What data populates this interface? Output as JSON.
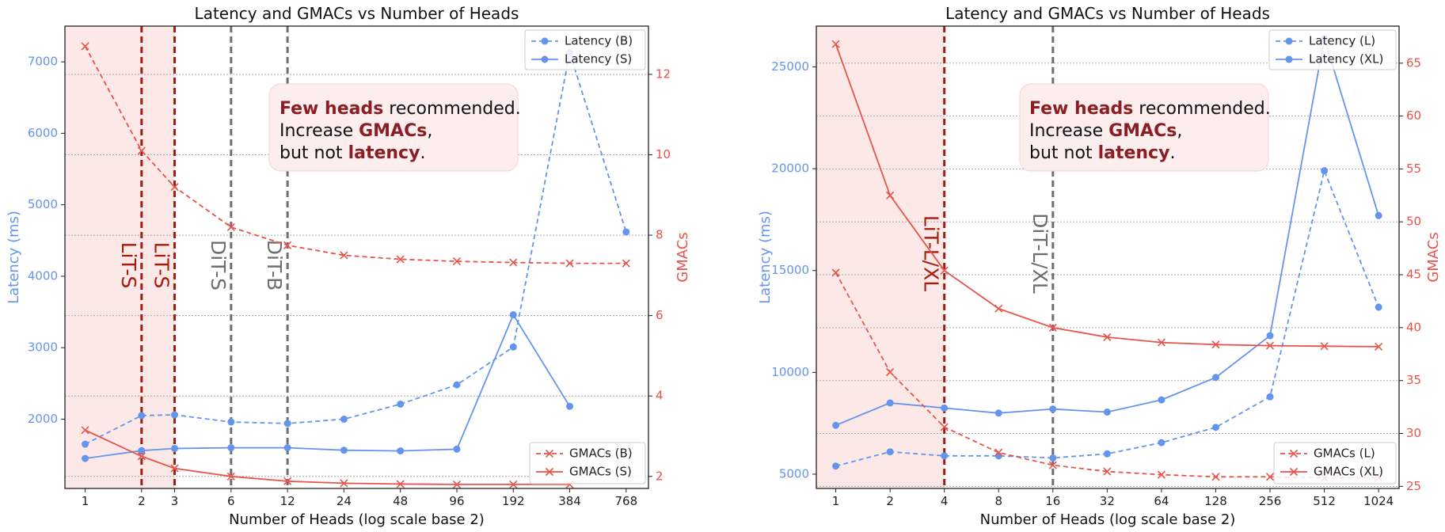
{
  "colors": {
    "latency": "#6495ED",
    "gmacs": "#E8534A",
    "lit_line": "#A61B0F",
    "dit_line": "#6E6E6E",
    "shade": "#FCE9E7",
    "grid": "#AAAAAA",
    "note_bg": "#FCEEEC",
    "note_emph": "#8B1E24"
  },
  "chart_data": [
    {
      "type": "line",
      "title": "Latency and GMACs vs Number of Heads",
      "xlabel": "Number of Heads (log scale base 2)",
      "ylabel_left": "Latency (ms)",
      "ylabel_right": "GMACs",
      "x_scale": "log2",
      "x_ticks": [
        1,
        2,
        3,
        6,
        12,
        24,
        48,
        96,
        192,
        384,
        768
      ],
      "x_tick_labels": [
        "1",
        "2",
        "3",
        "6",
        "12",
        "24",
        "48",
        "96",
        "192",
        "384",
        "768"
      ],
      "ylim_left": [
        1030,
        7500
      ],
      "ylim_right": [
        1.7,
        13.2
      ],
      "yticks_left": [
        2000,
        3000,
        4000,
        5000,
        6000,
        7000
      ],
      "yticks_right": [
        2,
        4,
        6,
        8,
        10,
        12
      ],
      "shaded_x_range": [
        0.1,
        3
      ],
      "grid": "horizontal dotted",
      "vlines": [
        {
          "x": 2,
          "label": "LiT-S",
          "kind": "lit"
        },
        {
          "x": 3,
          "label": "LiT-S",
          "kind": "lit"
        },
        {
          "x": 6,
          "label": "DiT-S",
          "kind": "dit"
        },
        {
          "x": 12,
          "label": "DiT-B",
          "kind": "dit"
        }
      ],
      "annotation": {
        "lines": [
          [
            {
              "text": "Few heads",
              "bold": true
            },
            {
              "text": " recommended.",
              "bold": false
            }
          ],
          [
            {
              "text": "Increase ",
              "bold": false
            },
            {
              "text": "GMACs",
              "bold": true
            },
            {
              "text": ",",
              "bold": false
            }
          ],
          [
            {
              "text": "but not ",
              "bold": false
            },
            {
              "text": "latency",
              "bold": true
            },
            {
              "text": ".",
              "bold": false
            }
          ]
        ]
      },
      "legend_top": [
        "Latency (B)",
        "Latency (S)"
      ],
      "legend_bottom": [
        "GMACs (B)",
        "GMACs (S)"
      ],
      "series": [
        {
          "name": "Latency (B)",
          "axis": "left",
          "style": "dashed",
          "marker": "o",
          "x": [
            1,
            2,
            3,
            6,
            12,
            24,
            48,
            96,
            192,
            384,
            768
          ],
          "values": [
            1650,
            2050,
            2060,
            1960,
            1940,
            2000,
            2210,
            2480,
            3010,
            7130,
            4620
          ]
        },
        {
          "name": "Latency (S)",
          "axis": "left",
          "style": "solid",
          "marker": "o",
          "x": [
            1,
            2,
            3,
            6,
            12,
            24,
            48,
            96,
            192,
            384
          ],
          "values": [
            1450,
            1560,
            1590,
            1600,
            1600,
            1565,
            1555,
            1580,
            3460,
            2180
          ]
        },
        {
          "name": "GMACs (B)",
          "axis": "right",
          "style": "dashed",
          "marker": "x",
          "x": [
            1,
            2,
            3,
            6,
            12,
            24,
            48,
            96,
            192,
            384,
            768
          ],
          "values": [
            12.7,
            10.1,
            9.2,
            8.2,
            7.75,
            7.5,
            7.4,
            7.35,
            7.32,
            7.3,
            7.3
          ]
        },
        {
          "name": "GMACs (S)",
          "axis": "right",
          "style": "solid",
          "marker": "x",
          "x": [
            1,
            2,
            3,
            6,
            12,
            24,
            48,
            96,
            192,
            384
          ],
          "values": [
            3.15,
            2.5,
            2.2,
            2.0,
            1.88,
            1.83,
            1.81,
            1.8,
            1.8,
            1.8
          ]
        }
      ]
    },
    {
      "type": "line",
      "title": "Latency and GMACs vs Number of Heads",
      "xlabel": "Number of Heads (log scale base 2)",
      "ylabel_left": "Latency (ms)",
      "ylabel_right": "GMACs",
      "x_scale": "log2",
      "x_ticks": [
        1,
        2,
        4,
        8,
        16,
        32,
        64,
        128,
        256,
        512,
        1024
      ],
      "x_tick_labels": [
        "1",
        "2",
        "4",
        "8",
        "16",
        "32",
        "64",
        "128",
        "256",
        "512",
        "1024"
      ],
      "ylim_left": [
        4300,
        27000
      ],
      "ylim_right": [
        24.8,
        68.5
      ],
      "yticks_left": [
        5000,
        10000,
        15000,
        20000,
        25000
      ],
      "yticks_right": [
        25,
        30,
        35,
        40,
        45,
        50,
        55,
        60,
        65
      ],
      "shaded_x_range": [
        0.1,
        4
      ],
      "grid": "horizontal dotted",
      "vlines": [
        {
          "x": 4,
          "label": "LiT-L/XL",
          "kind": "lit"
        },
        {
          "x": 16,
          "label": "DiT-L/XL",
          "kind": "dit"
        }
      ],
      "annotation": {
        "lines": [
          [
            {
              "text": "Few heads",
              "bold": true
            },
            {
              "text": " recommended.",
              "bold": false
            }
          ],
          [
            {
              "text": "Increase ",
              "bold": false
            },
            {
              "text": "GMACs",
              "bold": true
            },
            {
              "text": ",",
              "bold": false
            }
          ],
          [
            {
              "text": "but not ",
              "bold": false
            },
            {
              "text": "latency",
              "bold": true
            },
            {
              "text": ".",
              "bold": false
            }
          ]
        ]
      },
      "legend_top": [
        "Latency (L)",
        "Latency (XL)"
      ],
      "legend_bottom": [
        "GMACs (L)",
        "GMACs (XL)"
      ],
      "series": [
        {
          "name": "Latency (L)",
          "axis": "left",
          "style": "dashed",
          "marker": "o",
          "x": [
            1,
            2,
            4,
            8,
            16,
            32,
            64,
            128,
            256,
            512,
            1024
          ],
          "values": [
            5400,
            6100,
            5900,
            5900,
            5800,
            6000,
            6550,
            7300,
            8800,
            19900,
            13200
          ]
        },
        {
          "name": "Latency (XL)",
          "axis": "left",
          "style": "solid",
          "marker": "o",
          "x": [
            1,
            2,
            4,
            8,
            16,
            32,
            64,
            128,
            256,
            512,
            1024
          ],
          "values": [
            7400,
            8500,
            8250,
            8000,
            8200,
            8050,
            8650,
            9750,
            11800,
            26400,
            17700
          ]
        },
        {
          "name": "GMACs (L)",
          "axis": "right",
          "style": "dashed",
          "marker": "x",
          "x": [
            1,
            2,
            4,
            8,
            16,
            32,
            64,
            128,
            256,
            512,
            1024
          ],
          "values": [
            45.2,
            35.8,
            30.6,
            28.2,
            27.0,
            26.4,
            26.1,
            25.9,
            25.9,
            25.8,
            25.8
          ]
        },
        {
          "name": "GMACs (XL)",
          "axis": "right",
          "style": "solid",
          "marker": "x",
          "x": [
            1,
            2,
            4,
            8,
            16,
            32,
            64,
            128,
            256,
            512,
            1024
          ],
          "values": [
            66.8,
            52.5,
            45.4,
            41.8,
            40.0,
            39.1,
            38.6,
            38.4,
            38.3,
            38.25,
            38.2
          ]
        }
      ]
    }
  ]
}
